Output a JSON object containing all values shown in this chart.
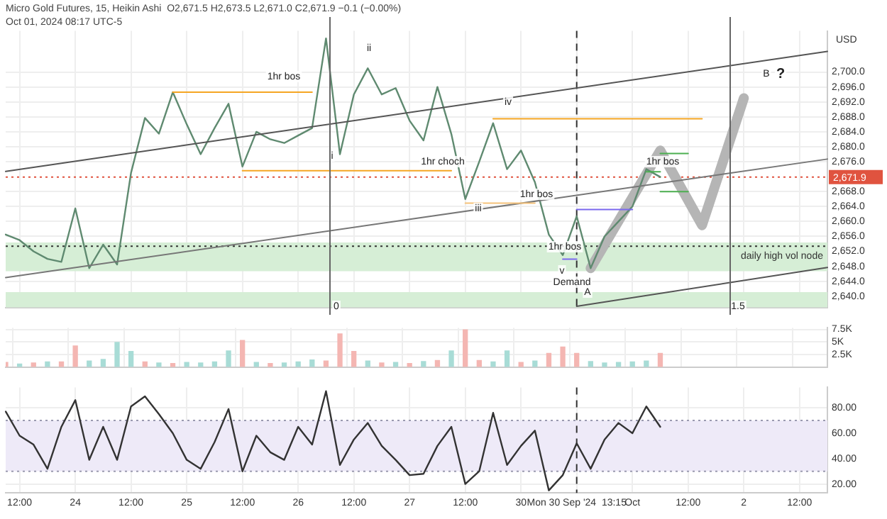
{
  "chart_data": [
    {
      "type": "line",
      "title": "Micro Gold Futures, 15, Heikin Ashi  O2,671.5 H2,673.5 L2,671.0 C2,671.9 −0.1 (−0.00%)",
      "subtitle": "Oct 01, 2024 08:17 UTC-5",
      "ylabel": "USD",
      "categories": [
        null,
        "12:00",
        null,
        null,
        null,
        "24",
        null,
        null,
        null,
        "12:00",
        null,
        null,
        null,
        "25",
        null,
        null,
        null,
        "12:00",
        null,
        null,
        null,
        "26",
        null,
        null,
        null,
        "12:00",
        null,
        null,
        null,
        "27",
        null,
        null,
        null,
        "12:00",
        null,
        null,
        null,
        "30",
        null,
        null,
        null,
        "Mon 30 Sep '24  13:15",
        null,
        null,
        null,
        "Oct",
        null,
        null,
        null,
        "12:00",
        null,
        null,
        null,
        "2",
        null,
        null,
        null,
        "12:00",
        null,
        null
      ],
      "ylim": [
        2637,
        2711
      ],
      "yticks": [
        {
          "value": 2640,
          "label": "2,640.0"
        },
        {
          "value": 2644,
          "label": "2,644.0"
        },
        {
          "value": 2648,
          "label": "2,648.0"
        },
        {
          "value": 2652,
          "label": "2,652.0"
        },
        {
          "value": 2656,
          "label": "2,656.0"
        },
        {
          "value": 2660,
          "label": "2,660.0"
        },
        {
          "value": 2664,
          "label": "2,664.0"
        },
        {
          "value": 2668,
          "label": "2,668.0"
        },
        {
          "value": 2676,
          "label": "2,676.0"
        },
        {
          "value": 2680,
          "label": "2,680.0"
        },
        {
          "value": 2684,
          "label": "2,684.0"
        },
        {
          "value": 2688,
          "label": "2,688.0"
        },
        {
          "value": 2692,
          "label": "2,692.0"
        },
        {
          "value": 2696,
          "label": "2,696.0"
        },
        {
          "value": 2700,
          "label": "2,700.0"
        }
      ],
      "tick_labels": "y",
      "grid": true,
      "marker": "none",
      "legend": false,
      "series": [
        {
          "color": "#5f8a70",
          "values": [
            2656.5,
            2655,
            2652,
            2650,
            2649.2,
            2663.5,
            2647.5,
            2653.8,
            2648.5,
            2673,
            2687.7,
            2683.5,
            2694.6,
            2686,
            2678,
            2685,
            2691.5,
            2674.7,
            2684,
            2682,
            2681,
            2683,
            2685,
            2709,
            2678,
            2694,
            2701,
            2694,
            2695.7,
            2687,
            2681.7,
            2696,
            2683.4,
            2666,
            2676,
            2686.3,
            2674,
            2679,
            2670.5,
            2656.5,
            2651,
            2661.4,
            2647.5,
            2656,
            2660,
            2664,
            2674,
            2671.9,
            null,
            null,
            null,
            null,
            null,
            null,
            null,
            null,
            null,
            null,
            null,
            null
          ]
        },
        {
          "color": "#b5b5b5",
          "values": [
            null,
            null,
            null,
            null,
            null,
            null,
            null,
            null,
            null,
            null,
            null,
            null,
            null,
            null,
            null,
            null,
            null,
            null,
            null,
            null,
            null,
            null,
            null,
            null,
            null,
            null,
            null,
            null,
            null,
            null,
            null,
            null,
            null,
            null,
            null,
            null,
            null,
            null,
            null,
            null,
            null,
            null,
            2647.5,
            null,
            null,
            null,
            null,
            2679,
            null,
            null,
            2659,
            null,
            null,
            2693,
            null,
            null,
            null,
            null,
            null,
            null
          ]
        },
        {
          "color": "#f5a623",
          "values": [
            null,
            null,
            null,
            null,
            null,
            null,
            null,
            null,
            null,
            null,
            null,
            null,
            2694.6,
            null,
            null,
            null,
            null,
            null,
            null,
            null,
            null,
            null,
            2694.6,
            null,
            null,
            null,
            null,
            null,
            null,
            null,
            null,
            null,
            null,
            null,
            null,
            null,
            null,
            null,
            null,
            null,
            null,
            null,
            null,
            null,
            null,
            null,
            null,
            null,
            null,
            null,
            null,
            null,
            null,
            null,
            null,
            null,
            null,
            null,
            null,
            null
          ]
        },
        {
          "color": "#f5a623",
          "values": [
            null,
            null,
            null,
            null,
            null,
            null,
            null,
            null,
            null,
            null,
            null,
            null,
            null,
            null,
            null,
            null,
            null,
            2673.6,
            null,
            null,
            null,
            null,
            null,
            null,
            null,
            null,
            null,
            null,
            null,
            null,
            null,
            null,
            2673.6,
            null,
            null,
            null,
            null,
            null,
            null,
            null,
            null,
            null,
            null,
            null,
            null,
            null,
            null,
            null,
            null,
            null,
            null,
            null,
            null,
            null,
            null,
            null,
            null,
            null,
            null,
            null
          ]
        },
        {
          "color": "#f5a623",
          "values": [
            null,
            null,
            null,
            null,
            null,
            null,
            null,
            null,
            null,
            null,
            null,
            null,
            null,
            null,
            null,
            null,
            null,
            null,
            null,
            null,
            null,
            null,
            null,
            null,
            null,
            null,
            null,
            null,
            null,
            null,
            null,
            null,
            null,
            null,
            null,
            2687.5,
            null,
            null,
            null,
            null,
            null,
            null,
            null,
            null,
            null,
            null,
            null,
            null,
            null,
            null,
            2687.5,
            null,
            null,
            null,
            null,
            null,
            null,
            null,
            null,
            null
          ]
        },
        {
          "color": "#f5c27a",
          "values": [
            null,
            null,
            null,
            null,
            null,
            null,
            null,
            null,
            null,
            null,
            null,
            null,
            null,
            null,
            null,
            null,
            null,
            null,
            null,
            null,
            null,
            null,
            null,
            null,
            null,
            null,
            null,
            null,
            null,
            null,
            null,
            null,
            null,
            2664.9,
            null,
            null,
            null,
            null,
            2664.9,
            null,
            null,
            null,
            null,
            null,
            null,
            null,
            null,
            null,
            null,
            null,
            null,
            null,
            null,
            null,
            null,
            null,
            null,
            null,
            null,
            null
          ]
        },
        {
          "color": "#7b68ee",
          "values": [
            null,
            null,
            null,
            null,
            null,
            null,
            null,
            null,
            null,
            null,
            null,
            null,
            null,
            null,
            null,
            null,
            null,
            null,
            null,
            null,
            null,
            null,
            null,
            null,
            null,
            null,
            null,
            null,
            null,
            null,
            null,
            null,
            null,
            null,
            null,
            null,
            null,
            null,
            null,
            null,
            null,
            2663.2,
            null,
            null,
            null,
            2663.2,
            null,
            null,
            null,
            null,
            null,
            null,
            null,
            null,
            null,
            null,
            null,
            null,
            null,
            null
          ]
        },
        {
          "color": "#7b68ee",
          "values": [
            null,
            null,
            null,
            null,
            null,
            null,
            null,
            null,
            null,
            null,
            null,
            null,
            null,
            null,
            null,
            null,
            null,
            null,
            null,
            null,
            null,
            null,
            null,
            null,
            null,
            null,
            null,
            null,
            null,
            null,
            null,
            null,
            null,
            null,
            null,
            null,
            null,
            null,
            null,
            null,
            2649.9,
            2649.9,
            null,
            null,
            null,
            null,
            null,
            null,
            null,
            null,
            null,
            null,
            null,
            null,
            null,
            null,
            null,
            null,
            null,
            null
          ]
        },
        {
          "color": "#4caf50",
          "values": [
            null,
            null,
            null,
            null,
            null,
            null,
            null,
            null,
            null,
            null,
            null,
            null,
            null,
            null,
            null,
            null,
            null,
            null,
            null,
            null,
            null,
            null,
            null,
            null,
            null,
            null,
            null,
            null,
            null,
            null,
            null,
            null,
            null,
            null,
            null,
            null,
            null,
            null,
            null,
            null,
            null,
            null,
            null,
            null,
            null,
            null,
            null,
            2678.2,
            null,
            2678.2,
            null,
            null,
            null,
            null,
            null,
            null,
            null,
            null,
            null,
            null
          ]
        },
        {
          "color": "#4caf50",
          "values": [
            null,
            null,
            null,
            null,
            null,
            null,
            null,
            null,
            null,
            null,
            null,
            null,
            null,
            null,
            null,
            null,
            null,
            null,
            null,
            null,
            null,
            null,
            null,
            null,
            null,
            null,
            null,
            null,
            null,
            null,
            null,
            null,
            null,
            null,
            null,
            null,
            null,
            null,
            null,
            null,
            null,
            null,
            null,
            null,
            null,
            null,
            null,
            2668,
            null,
            2668,
            null,
            null,
            null,
            null,
            null,
            null,
            null,
            null,
            null,
            null
          ]
        },
        {
          "color": "#4caf50",
          "values": [
            null,
            null,
            null,
            null,
            null,
            null,
            null,
            null,
            null,
            null,
            null,
            null,
            null,
            null,
            null,
            null,
            null,
            null,
            null,
            null,
            null,
            null,
            null,
            null,
            null,
            null,
            null,
            null,
            null,
            null,
            null,
            null,
            null,
            null,
            null,
            null,
            null,
            null,
            null,
            null,
            null,
            null,
            null,
            null,
            null,
            null,
            2673.3,
            2673.3,
            null,
            null,
            null,
            null,
            null,
            null,
            null,
            null,
            null,
            null,
            null,
            null
          ]
        },
        {
          "color": "#555555",
          "values": [
            2673.4,
            null,
            null,
            null,
            null,
            null,
            null,
            null,
            null,
            null,
            null,
            null,
            null,
            null,
            null,
            null,
            null,
            null,
            null,
            null,
            null,
            null,
            null,
            null,
            null,
            null,
            null,
            null,
            null,
            null,
            null,
            null,
            null,
            null,
            null,
            null,
            null,
            null,
            null,
            null,
            null,
            null,
            null,
            null,
            null,
            null,
            null,
            null,
            null,
            null,
            null,
            null,
            null,
            null,
            null,
            null,
            null,
            null,
            null,
            2705.5
          ]
        },
        {
          "color": "#777777",
          "values": [
            2645,
            null,
            null,
            null,
            null,
            null,
            null,
            null,
            null,
            null,
            null,
            null,
            null,
            null,
            null,
            null,
            null,
            null,
            null,
            null,
            null,
            null,
            null,
            null,
            null,
            null,
            null,
            null,
            null,
            null,
            null,
            null,
            null,
            null,
            null,
            null,
            null,
            null,
            null,
            null,
            null,
            null,
            null,
            null,
            null,
            null,
            null,
            null,
            null,
            null,
            null,
            null,
            null,
            null,
            null,
            null,
            null,
            null,
            null,
            2676.7
          ]
        },
        {
          "color": "#555555",
          "values": [
            null,
            null,
            null,
            null,
            null,
            null,
            null,
            null,
            null,
            null,
            null,
            null,
            null,
            null,
            null,
            null,
            null,
            null,
            null,
            null,
            null,
            null,
            null,
            null,
            null,
            null,
            null,
            null,
            null,
            null,
            null,
            null,
            null,
            null,
            null,
            null,
            null,
            null,
            null,
            null,
            null,
            2637.3,
            null,
            null,
            null,
            null,
            null,
            null,
            null,
            null,
            null,
            null,
            null,
            null,
            null,
            null,
            null,
            null,
            null,
            2647.7
          ]
        }
      ],
      "bands": [
        {
          "axis": "y",
          "from": 2646.7,
          "to": 2654.4,
          "color": "#d6eed6"
        },
        {
          "axis": "y",
          "from": 2637,
          "to": 2641.1,
          "color": "#d6eed6"
        }
      ],
      "ref_lines": [
        {
          "axis": "y",
          "value": 2653.4,
          "label": "daily high vol node",
          "color": "#333333",
          "line_style": "dotted"
        },
        {
          "axis": "y",
          "value": 2671.9,
          "label": "2,671.9",
          "color": "#e0533f",
          "line_style": "dotted"
        },
        {
          "axis": "x",
          "value": "Mon 30 Sep '24  13:15",
          "label": null,
          "color": "#333333",
          "line_style": "dashed"
        }
      ],
      "annotations": [
        "1hr bos",
        "ii",
        "i",
        "1hr choch",
        "iii",
        "iv",
        "1hr bos",
        "v",
        "1hr bos",
        "Demand",
        "A",
        "1hr bos",
        "B",
        "?",
        "0",
        "1.5"
      ]
    },
    {
      "type": "bar",
      "categories": [
        null,
        "12:00",
        null,
        null,
        null,
        "24",
        null,
        null,
        null,
        "12:00",
        null,
        null,
        null,
        "25",
        null,
        null,
        null,
        "12:00",
        null,
        null,
        null,
        "26",
        null,
        null,
        null,
        "12:00",
        null,
        null,
        null,
        "27",
        null,
        null,
        null,
        "12:00",
        null,
        null,
        null,
        "30",
        null,
        null,
        null,
        "Mon 30 Sep '24  13:15",
        null,
        null,
        null,
        "Oct",
        null,
        null,
        null,
        "12:00",
        null,
        null,
        null,
        "2",
        null,
        null,
        null,
        "12:00",
        null,
        null
      ],
      "ylim": [
        0,
        7.8
      ],
      "yticks": [
        {
          "value": 2.5,
          "label": "2.5K"
        },
        {
          "value": 5,
          "label": "5K"
        },
        {
          "value": 7.5,
          "label": "7.5K"
        }
      ],
      "tick_labels": "y",
      "grid": true,
      "legend": false,
      "values": [
        0.9,
        0.6,
        0.8,
        1.0,
        1.0,
        4.2,
        1.2,
        1.5,
        4.9,
        3.1,
        1.0,
        0.8,
        0.7,
        0.9,
        0.8,
        1.0,
        3.2,
        5.3,
        0.9,
        0.7,
        0.8,
        1.0,
        1.4,
        1.2,
        6.6,
        3.1,
        1.2,
        0.8,
        0.9,
        0.7,
        1.1,
        1.3,
        3.2,
        7.4,
        1.3,
        1.0,
        3.2,
        0.9,
        1.2,
        2.7,
        4.0,
        2.7,
        1.1,
        0.8,
        0.9,
        1.0,
        1.2,
        2.7,
        null,
        null,
        null,
        null,
        null,
        null,
        null,
        null,
        null,
        null,
        null,
        null
      ],
      "colors": [
        "#f4b6b2",
        "#a8dcd6",
        "#f4b6b2",
        "#a8dcd6",
        "#f4b6b2",
        "#f4b6b2",
        "#a8dcd6",
        "#a8dcd6",
        "#a8dcd6",
        "#a8dcd6",
        "#f4b6b2",
        "#a8dcd6",
        "#f4b6b2",
        "#a8dcd6",
        "#a8dcd6",
        "#a8dcd6",
        "#a8dcd6",
        "#f4b6b2",
        "#a8dcd6",
        "#f4b6b2",
        "#a8dcd6",
        "#a8dcd6",
        "#a8dcd6",
        "#f4b6b2",
        "#f4b6b2",
        "#f4b6b2",
        "#a8dcd6",
        "#f4b6b2",
        "#a8dcd6",
        "#f4b6b2",
        "#a8dcd6",
        "#f4b6b2",
        "#a8dcd6",
        "#f4b6b2",
        "#f4b6b2",
        "#a8dcd6",
        "#a8dcd6",
        "#f4b6b2",
        "#a8dcd6",
        "#f4b6b2",
        "#f4b6b2",
        "#f4b6b2",
        "#a8dcd6",
        "#a8dcd6",
        "#a8dcd6",
        "#a8dcd6",
        "#a8dcd6",
        "#f4b6b2",
        "#ffffff",
        "#ffffff",
        "#ffffff",
        "#ffffff",
        "#ffffff",
        "#ffffff",
        "#ffffff",
        "#ffffff",
        "#ffffff",
        "#ffffff",
        "#ffffff",
        "#ffffff"
      ]
    },
    {
      "type": "line",
      "categories": [
        null,
        "12:00",
        null,
        null,
        null,
        "24",
        null,
        null,
        null,
        "12:00",
        null,
        null,
        null,
        "25",
        null,
        null,
        null,
        "12:00",
        null,
        null,
        null,
        "26",
        null,
        null,
        null,
        "12:00",
        null,
        null,
        null,
        "27",
        null,
        null,
        null,
        "12:00",
        null,
        null,
        null,
        "30",
        null,
        null,
        null,
        "Mon 30 Sep '24  13:15",
        null,
        null,
        null,
        "Oct",
        null,
        null,
        null,
        "12:00",
        null,
        null,
        null,
        "2",
        null,
        null,
        null,
        "12:00",
        null,
        null
      ],
      "ylim": [
        13,
        96
      ],
      "yticks": [
        {
          "value": 20,
          "label": "20.00"
        },
        {
          "value": 40,
          "label": "40.00"
        },
        {
          "value": 60,
          "label": "60.00"
        },
        {
          "value": 80,
          "label": "80.00"
        }
      ],
      "grid": true,
      "marker": "none",
      "legend": false,
      "series": [
        {
          "color": "#333333",
          "values": [
            77,
            58,
            51,
            32,
            65,
            86,
            39,
            65,
            39,
            81,
            89,
            75,
            60,
            39,
            32,
            53,
            79,
            30,
            58,
            45,
            39,
            65,
            51,
            93,
            35,
            55,
            68,
            50,
            39,
            27,
            28,
            50,
            65,
            20,
            30,
            76,
            35,
            50,
            62,
            15,
            27,
            52,
            32,
            55,
            68,
            60,
            81,
            65,
            null,
            null,
            null,
            null,
            null,
            null,
            null,
            null,
            null,
            null,
            null,
            null
          ]
        }
      ],
      "bands": [
        {
          "axis": "y",
          "from": 30,
          "to": 70,
          "color": "#eeeaf8"
        }
      ],
      "ref_lines": [
        {
          "axis": "y",
          "value": 70,
          "label": null,
          "color": "#9a9ab0",
          "line_style": "dotted"
        },
        {
          "axis": "y",
          "value": 30,
          "label": null,
          "color": "#9a9ab0",
          "line_style": "dotted"
        },
        {
          "axis": "x",
          "value": "Mon 30 Sep '24  13:15",
          "label": null,
          "color": "#333333",
          "line_style": "dashed"
        }
      ]
    }
  ]
}
